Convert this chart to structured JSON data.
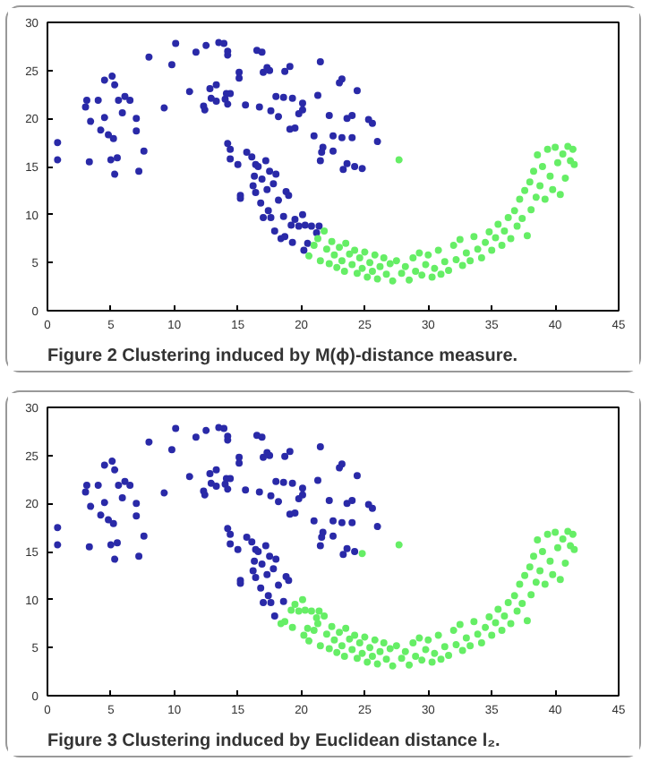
{
  "chart_data": [
    {
      "type": "scatter",
      "xlim": [
        0,
        45
      ],
      "ylim": [
        0,
        30
      ],
      "xticks": [
        0,
        5,
        10,
        15,
        20,
        25,
        30,
        35,
        40,
        45
      ],
      "yticks": [
        0,
        5,
        10,
        15,
        20,
        25,
        30
      ],
      "grid": false,
      "marker": "circle",
      "annotations": [
        "Figure 2  Clustering induced by M(ϕ)-distance measure."
      ],
      "series": [
        {
          "color": "#2a2aa8",
          "x": [
            0.8,
            0.8,
            3,
            3.1,
            3.3,
            3.4,
            4,
            4.2,
            4.5,
            4.5,
            4.8,
            5,
            5.1,
            5.2,
            5.3,
            5.3,
            5.5,
            5.6,
            5.9,
            6.1,
            6.5,
            7,
            7,
            7.2,
            7.6,
            8,
            9.2,
            9.8,
            10.1,
            11.2,
            11.7,
            12.3,
            12.4,
            12.5,
            12.8,
            12.9,
            13.3,
            13.3,
            13.5,
            13.9,
            14,
            14.1,
            14.2,
            14.2,
            14.4,
            14.2,
            15.1,
            15.1,
            14.2,
            14.4,
            14.4,
            15,
            15.2,
            15.2,
            15.6,
            15.7,
            16.1,
            16.2,
            16.4,
            16.5,
            16.7,
            16.9,
            17,
            17.3,
            17.5,
            17.6,
            18,
            18.2,
            18.6,
            18.7,
            19.1,
            19.1,
            19.3,
            19.5,
            19.8,
            20.1,
            20.1,
            21,
            21.3,
            21.5,
            21.5,
            21.6,
            21.7,
            22.2,
            22.5,
            22.5,
            23,
            23.2,
            23.2,
            23.3,
            23.6,
            23.6,
            24,
            24,
            24.2,
            24.4,
            24.8,
            25.3,
            25.6,
            26,
            16.3,
            16.4,
            16.6,
            16.8,
            16.9,
            17,
            17.2,
            17.3,
            17.4,
            17.5,
            17.6,
            17.8,
            17.9,
            18,
            18.2,
            18.4,
            18.6,
            18.7,
            18.8,
            19,
            19.2,
            19.3,
            19.5,
            19.8,
            20.1,
            20.2,
            20.3,
            20.5,
            20.8,
            21.2,
            21.4
          ],
          "values": [
            15.7,
            17.5,
            21.2,
            21.9,
            15.5,
            19.7,
            21.9,
            18.8,
            20.1,
            24,
            18.3,
            15.7,
            24.4,
            17.9,
            23.5,
            14.2,
            15.9,
            21.9,
            20.6,
            22.3,
            21.9,
            20,
            18.7,
            14.5,
            16.6,
            26.4,
            21.1,
            25.6,
            27.8,
            22.8,
            26.9,
            21.3,
            20.9,
            27.6,
            23.1,
            22.1,
            23.5,
            21.8,
            27.9,
            27.8,
            22,
            22.6,
            27,
            26.6,
            22.6,
            21.5,
            24.8,
            24.2,
            17.4,
            16.8,
            15.8,
            15.2,
            12,
            11.7,
            21.4,
            16.5,
            16,
            13,
            15.2,
            27.1,
            21.2,
            26.9,
            24.8,
            25.3,
            25,
            20.8,
            22.3,
            20.2,
            22.2,
            24.9,
            25.4,
            18.9,
            22.1,
            19,
            20.5,
            21.6,
            20.9,
            18.2,
            22.4,
            25.9,
            15.6,
            16.5,
            17,
            20.3,
            18.2,
            16.6,
            23.7,
            24.1,
            18,
            14.7,
            20,
            15.3,
            20.3,
            18,
            15,
            22.9,
            14.8,
            19.9,
            19.5,
            17.6,
            14,
            12.3,
            15,
            11.2,
            13.7,
            9.7,
            15.6,
            12.6,
            10.4,
            14.5,
            9.7,
            13.2,
            8.3,
            14.2,
            11.5,
            7.5,
            9.8,
            7.7,
            12.4,
            12,
            8.9,
            7.1,
            9.5,
            8.8,
            10,
            6.3,
            8.9,
            7,
            8.8,
            8.1,
            8.8
          ]
        },
        {
          "color": "#66ee66",
          "x": [
            20.6,
            21,
            21.3,
            21.5,
            21.8,
            22,
            22.2,
            22.4,
            22.6,
            22.8,
            23,
            23.2,
            23.4,
            23.5,
            23.8,
            24,
            24.2,
            24.4,
            24.6,
            24.8,
            25,
            25.2,
            25.4,
            25.6,
            25.8,
            26,
            26.2,
            26.5,
            26.7,
            27,
            27.2,
            27.5,
            27.7,
            27.9,
            28.2,
            28.5,
            28.8,
            29,
            29.3,
            29.5,
            29.8,
            30,
            30.3,
            30.5,
            30.8,
            31,
            31.3,
            31.6,
            32,
            32.2,
            32.5,
            32.7,
            33,
            33.3,
            33.6,
            33.9,
            34.2,
            34.5,
            34.8,
            35,
            35.3,
            35.5,
            35.8,
            36,
            36.3,
            36.5,
            36.8,
            37,
            37.2,
            37.4,
            37.6,
            37.8,
            38,
            38.1,
            38.3,
            38.5,
            38.6,
            38.8,
            39,
            39.2,
            39.4,
            39.6,
            39.8,
            40,
            40.2,
            40.4,
            40.6,
            40.8,
            41,
            41.2,
            41.4,
            41.5
          ],
          "values": [
            5.7,
            6.8,
            7.5,
            5.2,
            8.3,
            6.4,
            4.9,
            7.2,
            5.8,
            4.5,
            6.6,
            5.2,
            4.1,
            7,
            5.9,
            4.8,
            6.3,
            3.9,
            5.5,
            4.4,
            6.1,
            3.5,
            5,
            4.1,
            5.8,
            3.3,
            4.6,
            5.5,
            3.8,
            4.9,
            3.1,
            5.2,
            15.7,
            3.9,
            4.6,
            3.2,
            5.5,
            4.1,
            6,
            3.7,
            4.8,
            5.8,
            3.5,
            4.4,
            6.3,
            3.8,
            5.1,
            4.2,
            6.8,
            5.3,
            7.4,
            4.7,
            6,
            5.2,
            7.7,
            6.4,
            5.5,
            7.1,
            8.2,
            6.3,
            7.6,
            9,
            6.8,
            8.3,
            9.7,
            7.5,
            10.4,
            8.8,
            11.6,
            9.6,
            12.5,
            7.8,
            13.4,
            10.5,
            14.5,
            11.8,
            16.2,
            13,
            15,
            11.6,
            16.8,
            14,
            12.6,
            17,
            15.4,
            12.1,
            16.3,
            13.8,
            17.1,
            15.6,
            16.8,
            15.2
          ]
        }
      ]
    },
    {
      "type": "scatter",
      "xlim": [
        0,
        45
      ],
      "ylim": [
        0,
        30
      ],
      "xticks": [
        0,
        5,
        10,
        15,
        20,
        25,
        30,
        35,
        40,
        45
      ],
      "yticks": [
        0,
        5,
        10,
        15,
        20,
        25,
        30
      ],
      "grid": false,
      "marker": "circle",
      "annotations": [
        "Figure 3  Clustering induced by Euclidean distance l₂."
      ],
      "series": [
        {
          "color": "#2a2aa8",
          "x": [
            0.8,
            0.8,
            3,
            3.1,
            3.3,
            3.4,
            4,
            4.2,
            4.5,
            4.5,
            4.8,
            5,
            5.1,
            5.2,
            5.3,
            5.3,
            5.5,
            5.6,
            5.9,
            6.1,
            6.5,
            7,
            7,
            7.2,
            7.6,
            8,
            9.2,
            9.8,
            10.1,
            11.2,
            11.7,
            12.3,
            12.4,
            12.5,
            12.8,
            12.9,
            13.3,
            13.3,
            13.5,
            13.9,
            14,
            14.1,
            14.2,
            14.2,
            14.4,
            14.2,
            15.1,
            15.1,
            14.2,
            14.4,
            14.4,
            15,
            15.2,
            15.2,
            15.6,
            15.7,
            16.1,
            16.2,
            16.4,
            16.5,
            16.7,
            16.9,
            17,
            17.3,
            17.5,
            17.6,
            18,
            18.2,
            18.6,
            18.7,
            19.1,
            19.1,
            19.3,
            19.5,
            19.8,
            20.1,
            20.1,
            21,
            21.3,
            21.5,
            21.5,
            21.6,
            21.7,
            22.2,
            22.5,
            22.5,
            23,
            23.2,
            23.2,
            23.3,
            23.6,
            23.6,
            24,
            24,
            24.2,
            24.4,
            25.3,
            25.6,
            26,
            16.3,
            16.4,
            16.6,
            16.8,
            16.9,
            17,
            17.2,
            17.3,
            17.4,
            17.5,
            17.6,
            17.8,
            17.9,
            18,
            18.2,
            18.6,
            18.8,
            19
          ],
          "values": [
            15.7,
            17.5,
            21.2,
            21.9,
            15.5,
            19.7,
            21.9,
            18.8,
            20.1,
            24,
            18.3,
            15.7,
            24.4,
            17.9,
            23.5,
            14.2,
            15.9,
            21.9,
            20.6,
            22.3,
            21.9,
            20,
            18.7,
            14.5,
            16.6,
            26.4,
            21.1,
            25.6,
            27.8,
            22.8,
            26.9,
            21.3,
            20.9,
            27.6,
            23.1,
            22.1,
            23.5,
            21.8,
            27.9,
            27.8,
            22,
            22.6,
            27,
            26.6,
            22.6,
            21.5,
            24.8,
            24.2,
            17.4,
            16.8,
            15.8,
            15.2,
            12,
            11.7,
            21.4,
            16.5,
            16,
            13,
            15.2,
            27.1,
            21.2,
            26.9,
            24.8,
            25.3,
            25,
            20.8,
            22.3,
            20.2,
            22.2,
            24.9,
            25.4,
            18.9,
            22.1,
            19,
            20.5,
            21.6,
            20.9,
            18.2,
            22.4,
            25.9,
            15.6,
            16.5,
            17,
            20.3,
            18.2,
            16.6,
            23.7,
            24.1,
            18,
            14.7,
            20,
            15.3,
            20.3,
            18,
            15,
            22.9,
            19.9,
            19.5,
            17.6,
            14,
            12.3,
            15,
            11.2,
            13.7,
            9.7,
            15.6,
            12.6,
            10.4,
            14.5,
            9.7,
            13.2,
            8.3,
            14.2,
            11.5,
            9.8,
            12.4,
            12
          ]
        },
        {
          "color": "#66ee66",
          "x": [
            18.4,
            18.7,
            19.2,
            19.3,
            19.5,
            19.8,
            20.1,
            20.2,
            20.3,
            20.5,
            20.8,
            21.2,
            21.4,
            24.8,
            20.6,
            21,
            21.3,
            21.5,
            21.8,
            22,
            22.2,
            22.4,
            22.6,
            22.8,
            23,
            23.2,
            23.4,
            23.5,
            23.8,
            24,
            24.2,
            24.4,
            24.6,
            24.8,
            25,
            25.2,
            25.4,
            25.6,
            25.8,
            26,
            26.2,
            26.5,
            26.7,
            27,
            27.2,
            27.5,
            27.7,
            27.9,
            28.2,
            28.5,
            28.8,
            29,
            29.3,
            29.5,
            29.8,
            30,
            30.3,
            30.5,
            30.8,
            31,
            31.3,
            31.6,
            32,
            32.2,
            32.5,
            32.7,
            33,
            33.3,
            33.6,
            33.9,
            34.2,
            34.5,
            34.8,
            35,
            35.3,
            35.5,
            35.8,
            36,
            36.3,
            36.5,
            36.8,
            37,
            37.2,
            37.4,
            37.6,
            37.8,
            38,
            38.1,
            38.3,
            38.5,
            38.6,
            38.8,
            39,
            39.2,
            39.4,
            39.6,
            39.8,
            40,
            40.2,
            40.4,
            40.6,
            40.8,
            41,
            41.2,
            41.4,
            41.5
          ],
          "values": [
            7.5,
            7.7,
            8.9,
            7.1,
            9.5,
            8.8,
            10,
            6.3,
            8.9,
            7,
            8.8,
            8.1,
            8.8,
            14.8,
            5.7,
            6.8,
            7.5,
            5.2,
            8.3,
            6.4,
            4.9,
            7.2,
            5.8,
            4.5,
            6.6,
            5.2,
            4.1,
            7,
            5.9,
            4.8,
            6.3,
            3.9,
            5.5,
            4.4,
            6.1,
            3.5,
            5,
            4.1,
            5.8,
            3.3,
            4.6,
            5.5,
            3.8,
            4.9,
            3.1,
            5.2,
            15.7,
            3.9,
            4.6,
            3.2,
            5.5,
            4.1,
            6,
            3.7,
            4.8,
            5.8,
            3.5,
            4.4,
            6.3,
            3.8,
            5.1,
            4.2,
            6.8,
            5.3,
            7.4,
            4.7,
            6,
            5.2,
            7.7,
            6.4,
            5.5,
            7.1,
            8.2,
            6.3,
            7.6,
            9,
            6.8,
            8.3,
            9.7,
            7.5,
            10.4,
            8.8,
            11.6,
            9.6,
            12.5,
            7.8,
            13.4,
            10.5,
            14.5,
            11.8,
            16.2,
            13,
            15,
            11.6,
            16.8,
            14,
            12.6,
            17,
            15.4,
            12.1,
            16.3,
            13.8,
            17.1,
            15.6,
            16.8,
            15.2
          ]
        }
      ]
    }
  ]
}
